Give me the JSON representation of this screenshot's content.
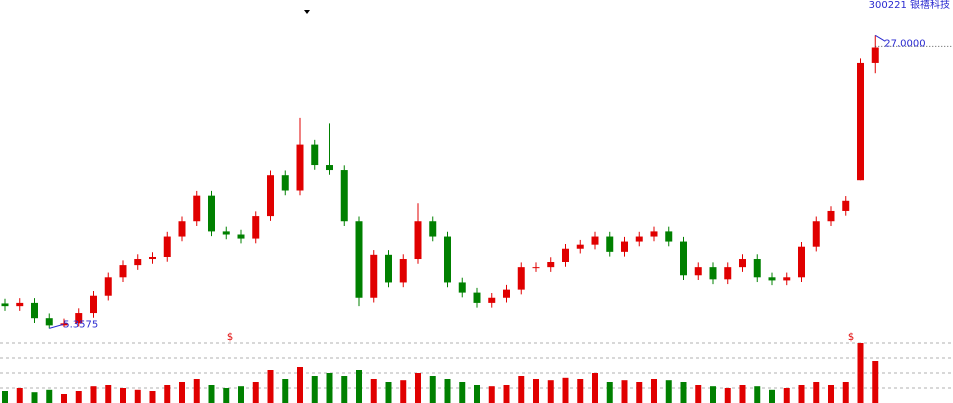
{
  "chart_data": {
    "type": "candlestick",
    "title": "300221 银禧科技",
    "high_label": "27.0000",
    "low_label": "5.3575",
    "markers": [
      "$",
      "$"
    ],
    "up_color": "#e00000",
    "down_color": "#008000",
    "ylim": [
      4.5,
      28.5
    ],
    "volume_ylim": [
      0,
      100
    ],
    "open": [
      7.2,
      7.0,
      7.24,
      6.11,
      5.58,
      5.73,
      6.49,
      7.77,
      9.13,
      10.03,
      10.48,
      10.63,
      12.14,
      13.27,
      15.16,
      12.52,
      12.29,
      11.99,
      13.65,
      16.67,
      15.54,
      18.93,
      17.42,
      17.05,
      13.27,
      7.62,
      10.79,
      8.75,
      10.48,
      13.27,
      12.14,
      8.75,
      8.0,
      7.24,
      7.62,
      8.22,
      9.88,
      9.88,
      10.26,
      11.24,
      11.54,
      12.14,
      11.01,
      11.77,
      12.14,
      12.52,
      11.77,
      9.28,
      9.88,
      8.98,
      9.88,
      10.48,
      9.13,
      8.9,
      9.13,
      11.39,
      13.27,
      14.03,
      16.3,
      24.96
    ],
    "high": [
      7.55,
      7.59,
      7.59,
      6.46,
      6.08,
      6.84,
      8.12,
      9.48,
      10.38,
      10.83,
      10.98,
      12.49,
      13.62,
      15.51,
      15.51,
      12.87,
      12.64,
      14.0,
      17.02,
      17.02,
      20.9,
      19.28,
      20.5,
      17.4,
      13.62,
      11.14,
      11.14,
      10.83,
      14.6,
      13.62,
      12.49,
      9.1,
      8.35,
      7.97,
      8.57,
      10.23,
      10.23,
      10.61,
      11.59,
      11.89,
      12.49,
      12.49,
      12.12,
      12.49,
      12.87,
      12.87,
      12.12,
      10.23,
      10.23,
      10.23,
      10.83,
      10.83,
      9.48,
      9.48,
      11.74,
      13.62,
      14.38,
      15.13,
      25.3,
      27.0
    ],
    "low": [
      6.65,
      6.65,
      5.76,
      5.3575,
      5.45,
      5.5,
      6.14,
      7.42,
      8.78,
      9.68,
      10.13,
      10.28,
      11.79,
      12.92,
      12.17,
      11.94,
      11.64,
      11.64,
      13.3,
      15.19,
      15.19,
      17.07,
      16.7,
      12.92,
      7.0,
      7.27,
      8.4,
      8.4,
      10.13,
      11.79,
      8.4,
      7.65,
      6.89,
      6.89,
      7.27,
      7.87,
      9.53,
      9.53,
      9.91,
      10.89,
      11.19,
      10.66,
      10.66,
      11.42,
      11.79,
      11.42,
      8.93,
      8.93,
      8.63,
      8.63,
      9.53,
      8.78,
      8.55,
      8.55,
      8.78,
      11.04,
      12.92,
      13.68,
      16.3,
      24.2
    ],
    "close": [
      7.0,
      7.24,
      6.11,
      5.58,
      5.73,
      6.49,
      7.77,
      9.13,
      10.03,
      10.48,
      10.63,
      12.14,
      13.27,
      15.16,
      12.52,
      12.29,
      11.99,
      13.65,
      16.67,
      15.54,
      18.93,
      17.42,
      17.05,
      13.27,
      7.62,
      10.79,
      8.75,
      10.48,
      13.27,
      12.14,
      8.75,
      8.0,
      7.24,
      7.62,
      8.22,
      9.88,
      9.88,
      10.26,
      11.24,
      11.54,
      12.14,
      11.01,
      11.77,
      12.14,
      12.52,
      11.77,
      9.28,
      9.88,
      8.98,
      9.88,
      10.48,
      9.13,
      8.9,
      9.13,
      11.39,
      13.27,
      14.03,
      14.78,
      24.96,
      26.1
    ],
    "volume": [
      20,
      25,
      18,
      22,
      15,
      20,
      28,
      30,
      25,
      22,
      20,
      30,
      35,
      40,
      30,
      25,
      28,
      35,
      55,
      40,
      60,
      45,
      50,
      45,
      55,
      40,
      35,
      38,
      50,
      45,
      40,
      35,
      30,
      28,
      30,
      45,
      40,
      38,
      42,
      40,
      50,
      35,
      38,
      35,
      40,
      38,
      35,
      30,
      28,
      25,
      30,
      28,
      22,
      25,
      30,
      35,
      30,
      35,
      100,
      70
    ]
  }
}
